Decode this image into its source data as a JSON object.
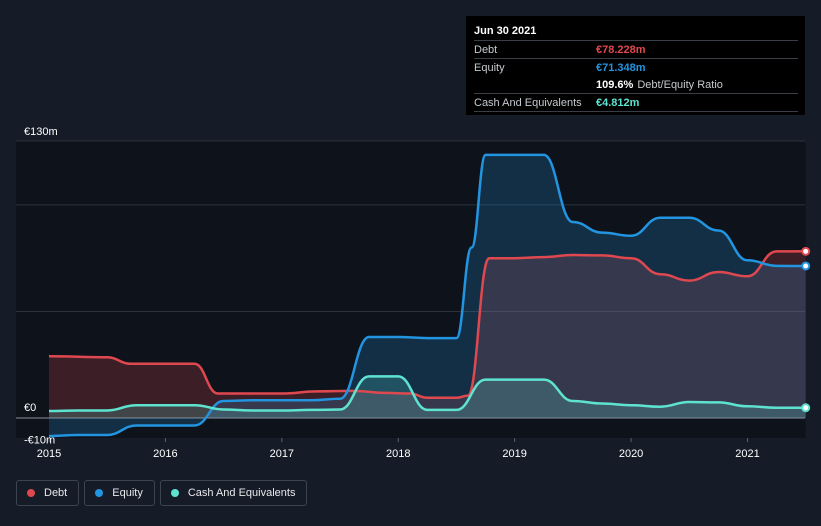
{
  "tooltip": {
    "date": "Jun 30 2021",
    "debt_label": "Debt",
    "debt_value": "€78.228m",
    "equity_label": "Equity",
    "equity_value": "€71.348m",
    "ratio_value": "109.6%",
    "ratio_label": "Debt/Equity Ratio",
    "cash_label": "Cash And Equivalents",
    "cash_value": "€4.812m"
  },
  "legend": [
    {
      "label": "Debt",
      "color": "#e0484f"
    },
    {
      "label": "Equity",
      "color": "#2394df"
    },
    {
      "label": "Cash And Equivalents",
      "color": "#5fe3d1"
    }
  ],
  "colors": {
    "debt": "#e0484f",
    "equity": "#2394df",
    "cash": "#5fe3d1",
    "background": "#151b27",
    "plot_background": "#0e131b",
    "grid": "#2b313d"
  },
  "chart_data": {
    "type": "area",
    "title": "",
    "xlabel": "",
    "ylabel": "",
    "ylim": [
      -10,
      130
    ],
    "y_tick_labels": [
      {
        "value": 130,
        "label": "€130m"
      },
      {
        "value": 0,
        "label": "€0"
      },
      {
        "value": -10,
        "label": "-€10m"
      }
    ],
    "gridlines": [
      130,
      100,
      50,
      0
    ],
    "xlim": [
      2015.0,
      2021.5
    ],
    "x_ticks": [
      2015,
      2016,
      2017,
      2018,
      2019,
      2020,
      2021
    ],
    "x_tick_labels": [
      "2015",
      "2016",
      "2017",
      "2018",
      "2019",
      "2020",
      "2021"
    ],
    "series": [
      {
        "name": "Debt",
        "key": "debt",
        "points": [
          [
            2015.0,
            29
          ],
          [
            2015.5,
            28.5
          ],
          [
            2015.7,
            25.5
          ],
          [
            2016.0,
            25.5
          ],
          [
            2016.25,
            25.5
          ],
          [
            2016.45,
            11.5
          ],
          [
            2016.7,
            11.5
          ],
          [
            2017.0,
            11.5
          ],
          [
            2017.3,
            12.5
          ],
          [
            2017.6,
            12.7
          ],
          [
            2017.9,
            11.8
          ],
          [
            2018.1,
            11.5
          ],
          [
            2018.25,
            9.5
          ],
          [
            2018.5,
            9.5
          ],
          [
            2018.6,
            10.5
          ],
          [
            2018.78,
            75
          ],
          [
            2019.0,
            75
          ],
          [
            2019.25,
            75.5
          ],
          [
            2019.5,
            76.5
          ],
          [
            2019.75,
            76.3
          ],
          [
            2020.0,
            75
          ],
          [
            2020.25,
            67.5
          ],
          [
            2020.5,
            64.5
          ],
          [
            2020.75,
            68.5
          ],
          [
            2021.0,
            66.5
          ],
          [
            2021.25,
            78.2
          ],
          [
            2021.5,
            78.228
          ]
        ]
      },
      {
        "name": "Equity",
        "key": "equity",
        "points": [
          [
            2015.0,
            -8.5
          ],
          [
            2015.25,
            -8
          ],
          [
            2015.5,
            -8
          ],
          [
            2015.75,
            -3.5
          ],
          [
            2016.0,
            -3.5
          ],
          [
            2016.25,
            -3.5
          ],
          [
            2016.5,
            8
          ],
          [
            2016.75,
            8.3
          ],
          [
            2017.0,
            8.3
          ],
          [
            2017.25,
            8.3
          ],
          [
            2017.5,
            9
          ],
          [
            2017.75,
            38
          ],
          [
            2018.0,
            38
          ],
          [
            2018.25,
            37.5
          ],
          [
            2018.5,
            37.5
          ],
          [
            2018.63,
            80
          ],
          [
            2018.75,
            123.5
          ],
          [
            2019.0,
            123.5
          ],
          [
            2019.25,
            123.5
          ],
          [
            2019.5,
            92
          ],
          [
            2019.75,
            87
          ],
          [
            2020.0,
            85.5
          ],
          [
            2020.25,
            94
          ],
          [
            2020.5,
            94
          ],
          [
            2020.75,
            88
          ],
          [
            2021.0,
            74
          ],
          [
            2021.25,
            71.4
          ],
          [
            2021.5,
            71.348
          ]
        ]
      },
      {
        "name": "Cash And Equivalents",
        "key": "cash",
        "points": [
          [
            2015.0,
            3.3
          ],
          [
            2015.25,
            3.5
          ],
          [
            2015.5,
            3.5
          ],
          [
            2015.75,
            6
          ],
          [
            2016.0,
            6
          ],
          [
            2016.25,
            6
          ],
          [
            2016.5,
            4
          ],
          [
            2016.75,
            3.5
          ],
          [
            2017.0,
            3.5
          ],
          [
            2017.25,
            3.8
          ],
          [
            2017.5,
            4
          ],
          [
            2017.75,
            19.5
          ],
          [
            2018.0,
            19.5
          ],
          [
            2018.25,
            3.8
          ],
          [
            2018.5,
            3.8
          ],
          [
            2018.75,
            18
          ],
          [
            2019.0,
            18
          ],
          [
            2019.25,
            18
          ],
          [
            2019.5,
            8
          ],
          [
            2019.75,
            6.8
          ],
          [
            2020.0,
            6
          ],
          [
            2020.25,
            5.3
          ],
          [
            2020.5,
            7.5
          ],
          [
            2020.75,
            7.3
          ],
          [
            2021.0,
            5.5
          ],
          [
            2021.25,
            4.8
          ],
          [
            2021.5,
            4.812
          ]
        ]
      }
    ]
  }
}
